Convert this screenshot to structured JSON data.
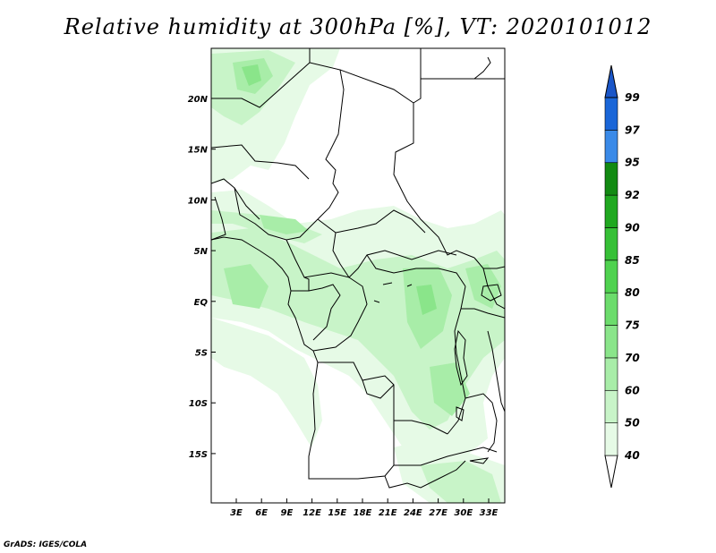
{
  "title": "Relative humidity at 300hPa [%], VT: 2020101012",
  "credit": "GrADS: IGES/COLA",
  "map": {
    "lon_ticks": [
      "3E",
      "6E",
      "9E",
      "12E",
      "15E",
      "18E",
      "21E",
      "24E",
      "27E",
      "30E",
      "33E"
    ],
    "lat_ticks": [
      "20N",
      "15N",
      "10N",
      "5N",
      "EQ",
      "5S",
      "10S",
      "15S"
    ],
    "boundaries_color": "#000000",
    "land_fill": "#ffffff"
  },
  "colorbar": {
    "levels": [
      "40",
      "50",
      "60",
      "70",
      "75",
      "80",
      "85",
      "90",
      "92",
      "95",
      "97",
      "99"
    ],
    "colors": [
      "#ffffff",
      "#e6fae6",
      "#c8f4c8",
      "#a8eda8",
      "#8ae58a",
      "#6cdc6c",
      "#4fd24f",
      "#36c036",
      "#20a820",
      "#128a12",
      "#3a8ae8",
      "#1a66d8",
      "#1a56c8"
    ]
  }
}
